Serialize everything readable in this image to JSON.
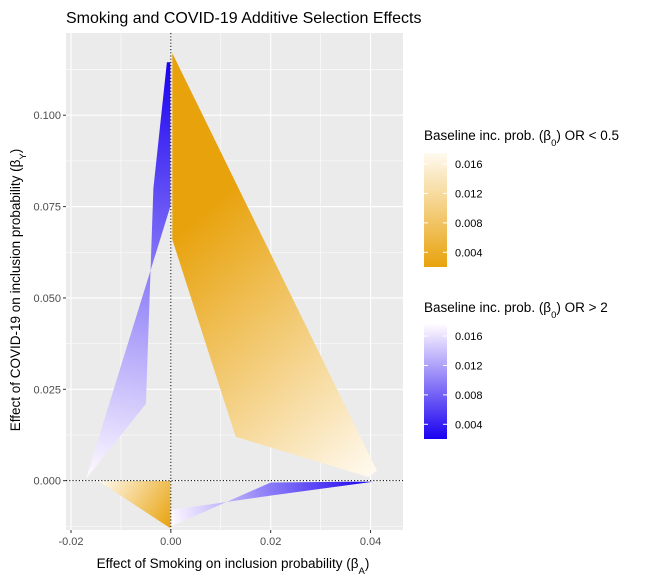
{
  "chart_data": {
    "type": "area",
    "title": "Smoking and COVID-19 Additive Selection Effects",
    "xlabel": "Effect of Smoking on inclusion probability (β",
    "xlabel_sub": "A",
    "xlabel_close": ")",
    "ylabel": "Effect of COVID-19 on inclusion probability (β",
    "ylabel_sub": "Y",
    "ylabel_close": ")",
    "xlim": [
      -0.021,
      0.0465
    ],
    "ylim": [
      -0.0135,
      0.1225
    ],
    "x_ticks": [
      -0.02,
      0.0,
      0.02,
      0.04
    ],
    "x_tick_labels": [
      "-0.02",
      "0.00",
      "0.02",
      "0.04"
    ],
    "y_ticks": [
      0.0,
      0.025,
      0.05,
      0.075,
      0.1
    ],
    "y_tick_labels": [
      "0.000",
      "0.025",
      "0.050",
      "0.075",
      "0.100"
    ],
    "grid": true,
    "reference_lines": {
      "x": 0,
      "y": 0,
      "style": "dotted"
    },
    "series": [
      {
        "legend_title": "Baseline inc. prob. (β",
        "legend_title_sub": "0",
        "legend_title_tail": ") OR < 0.5",
        "color_low": "#E8A20C",
        "color_high": "#FFFAF0",
        "legend_ticks": [
          "0.016",
          "0.012",
          "0.008",
          "0.004"
        ],
        "legend_tick_values": [
          0.016,
          0.012,
          0.008,
          0.004
        ],
        "range": [
          0.002,
          0.0175
        ],
        "regions": [
          {
            "points": [
              [
                0.0003,
                0.117
              ],
              [
                0.0413,
                0.0027
              ],
              [
                0.0395,
                0.001
              ],
              [
                0.013,
                0.012
              ],
              [
                0.0003,
                0.066
              ]
            ],
            "inner": [
              0.0003,
              0.066
            ],
            "outer": [
              0.0413,
              0.0027
            ]
          },
          {
            "points": [
              [
                -0.0145,
                -0.0001
              ],
              [
                -0.0001,
                -0.0001
              ],
              [
                -0.0001,
                -0.013
              ]
            ],
            "inner": [
              -0.0001,
              -0.013
            ],
            "outer": [
              -0.0145,
              -0.0001
            ]
          }
        ]
      },
      {
        "legend_title": "Baseline inc. prob. (β",
        "legend_title_sub": "0",
        "legend_title_tail": ") OR > 2",
        "color_low": "#1A00F0",
        "color_high": "#FFFAFF",
        "legend_ticks": [
          "0.016",
          "0.012",
          "0.008",
          "0.004"
        ],
        "legend_tick_values": [
          0.016,
          0.012,
          0.008,
          0.004
        ],
        "range": [
          0.002,
          0.0175
        ],
        "regions": [
          {
            "points": [
              [
                -0.0008,
                0.1145
              ],
              [
                -0.0001,
                0.1145
              ],
              [
                -0.0001,
                0.075
              ],
              [
                -0.017,
                0.0005
              ],
              [
                -0.005,
                0.021
              ],
              [
                -0.0035,
                0.08
              ]
            ],
            "inner": [
              -0.0004,
              0.1145
            ],
            "outer": [
              -0.017,
              0.0005
            ]
          },
          {
            "points": [
              [
                0.0001,
                -0.008
              ],
              [
                0.0205,
                -0.004
              ],
              [
                0.0405,
                -0.0003
              ],
              [
                0.036,
                -0.0003
              ],
              [
                0.02,
                -0.0005
              ],
              [
                0.0001,
                -0.0125
              ]
            ],
            "inner": [
              0.0405,
              -0.0003
            ],
            "outer": [
              0.0001,
              -0.0125
            ]
          }
        ]
      }
    ]
  }
}
